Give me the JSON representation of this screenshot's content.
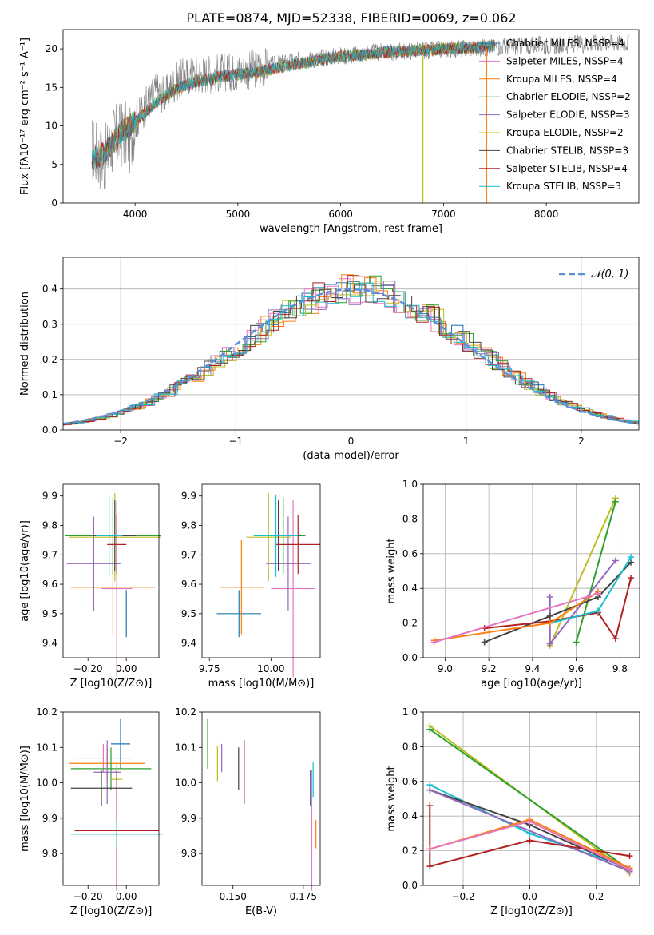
{
  "figure_title": "PLATE=0874, MJD=52338, FIBERID=0069, z=0.062",
  "legend_colors": [
    "#1f77b4",
    "#e377c2",
    "#ff7f0e",
    "#2ca02c",
    "#9467bd",
    "#bcbd22",
    "#444444",
    "#b22222",
    "#17becf"
  ],
  "chart_data": [
    {
      "id": "spectrum",
      "type": "line",
      "xlabel": "wavelength [Angstrom, rest frame]",
      "ylabel": "Flux [fλ10⁻¹⁷ erg cm⁻² s⁻¹ A⁻¹]",
      "xlim": [
        3300,
        8900
      ],
      "ylim": [
        0,
        22.5
      ],
      "xticks": [
        4000,
        5000,
        6000,
        7000,
        8000
      ],
      "yticks": [
        0,
        5,
        10,
        15,
        20
      ],
      "grid": false,
      "legend": "top-right",
      "legend_labels": [
        "Chabrier MILES, NSSP=4",
        "Salpeter MILES, NSSP=4",
        "Kroupa MILES, NSSP=4",
        "Chabrier ELODIE, NSSP=2",
        "Salpeter ELODIE, NSSP=3",
        "Kroupa ELODIE, NSSP=2",
        "Chabrier STELIB, NSSP=3",
        "Salpeter STELIB, NSSP=4",
        "Kroupa STELIB, NSSP=3"
      ],
      "series": [
        {
          "name": "data",
          "color": "#808080",
          "x": [
            3580,
            3700,
            3800,
            3900,
            3950,
            4000,
            4100,
            4200,
            4300,
            4400,
            4500,
            4700,
            4900,
            5100,
            5300,
            5500,
            5700,
            5900,
            6100,
            6300,
            6500,
            6700,
            6900,
            7100,
            7300,
            7500,
            7700,
            7900,
            8100,
            8300,
            8500,
            8800
          ],
          "y": [
            7.0,
            5.5,
            8.5,
            9.0,
            8.0,
            10.5,
            12.5,
            14.5,
            14.0,
            15.8,
            16.5,
            16.8,
            17.0,
            17.2,
            17.8,
            18.3,
            18.6,
            19.0,
            19.2,
            19.5,
            19.6,
            19.8,
            19.8,
            20.0,
            20.1,
            20.3,
            20.3,
            20.5,
            20.4,
            20.6,
            20.8,
            20.8
          ]
        },
        {
          "name": "model",
          "color": "#17becf",
          "x": [
            3580,
            3700,
            3800,
            3900,
            4000,
            4200,
            4400,
            4600,
            4800,
            5000,
            5200,
            5400,
            5600,
            5800,
            6000,
            6200,
            6400,
            6600,
            6800,
            7000,
            7200,
            7400,
            7500
          ],
          "y": [
            5.5,
            6.5,
            8.0,
            9.5,
            10.5,
            13.0,
            14.8,
            15.8,
            16.3,
            16.7,
            17.0,
            17.6,
            18.1,
            18.6,
            19.0,
            19.2,
            19.5,
            19.7,
            19.8,
            20.0,
            20.1,
            20.3,
            20.4
          ]
        }
      ]
    },
    {
      "id": "residuals",
      "type": "line",
      "xlabel": "(data-model)/error",
      "ylabel": "Normed distribution",
      "xlim": [
        -2.5,
        2.5
      ],
      "ylim": [
        0,
        0.49
      ],
      "xticks": [
        -2,
        -1,
        0,
        1,
        2
      ],
      "yticks": [
        0.0,
        0.1,
        0.2,
        0.3,
        0.4
      ],
      "grid": true,
      "legend": "top-right",
      "legend_label": "𝒩(0, 1)"
    },
    {
      "id": "age-vs-Z",
      "type": "scatter",
      "xlabel": "Z [log10(Z/Z⊙)]",
      "ylabel": "age [log10(age/yr)]",
      "xlim": [
        -0.33,
        0.17
      ],
      "ylim": [
        9.35,
        9.94
      ],
      "xticks": [
        -0.2,
        0.0
      ],
      "yticks": [
        9.4,
        9.5,
        9.6,
        9.7,
        9.8,
        9.9
      ],
      "points": [
        {
          "x": 0.0,
          "y": 9.5,
          "xerr": 0.0,
          "yerr": 0.08
        },
        {
          "x": -0.05,
          "y": 9.585,
          "xerr": 0.08,
          "yerr": 0.3
        },
        {
          "x": -0.07,
          "y": 9.59,
          "xerr": 0.22,
          "yerr": 0.16
        },
        {
          "x": -0.07,
          "y": 9.765,
          "xerr": 0.25,
          "yerr": 0.13
        },
        {
          "x": -0.17,
          "y": 9.67,
          "xerr": 0.14,
          "yerr": 0.16
        },
        {
          "x": -0.06,
          "y": 9.76,
          "xerr": 0.24,
          "yerr": 0.15
        },
        {
          "x": -0.06,
          "y": 9.765,
          "xerr": 0.11,
          "yerr": 0.12
        },
        {
          "x": -0.05,
          "y": 9.735,
          "xerr": 0.05,
          "yerr": 0.1
        },
        {
          "x": -0.09,
          "y": 9.765,
          "xerr": 0.07,
          "yerr": 0.14
        }
      ]
    },
    {
      "id": "age-vs-mass",
      "type": "scatter",
      "xlabel": "mass [log10(M/M⊙)]",
      "ylabel": "",
      "xlim": [
        9.72,
        10.2
      ],
      "ylim": [
        9.35,
        9.94
      ],
      "xticks": [
        9.75,
        10.0
      ],
      "yticks": [
        9.4,
        9.5,
        9.6,
        9.7,
        9.8,
        9.9
      ]
    },
    {
      "id": "weight-vs-age",
      "type": "line",
      "xlabel": "age [log10(age/yr)]",
      "ylabel": "mass weight",
      "xlim": [
        8.9,
        9.89
      ],
      "ylim": [
        0.0,
        1.0
      ],
      "xticks": [
        9.0,
        9.2,
        9.4,
        9.6,
        9.8
      ],
      "yticks": [
        0.0,
        0.2,
        0.4,
        0.6,
        0.8,
        1.0
      ],
      "grid": true,
      "series": [
        {
          "color": "#bcbd22",
          "x": [
            9.48,
            9.78
          ],
          "y": [
            0.07,
            0.92
          ]
        },
        {
          "color": "#2ca02c",
          "x": [
            9.6,
            9.78
          ],
          "y": [
            0.09,
            0.9
          ]
        },
        {
          "color": "#9467bd",
          "x": [
            9.48,
            9.48,
            9.78
          ],
          "y": [
            0.35,
            0.08,
            0.56
          ]
        },
        {
          "color": "#444444",
          "x": [
            9.18,
            9.48,
            9.7,
            9.85
          ],
          "y": [
            0.09,
            0.24,
            0.35,
            0.55
          ]
        },
        {
          "color": "#b22222",
          "x": [
            9.18,
            9.48,
            9.7,
            9.78,
            9.85
          ],
          "y": [
            0.17,
            0.21,
            0.26,
            0.11,
            0.46
          ]
        },
        {
          "color": "#17becf",
          "x": [
            9.48,
            9.7,
            9.85
          ],
          "y": [
            0.2,
            0.27,
            0.58
          ]
        },
        {
          "color": "#ff7f0e",
          "x": [
            8.95,
            9.48,
            9.7
          ],
          "y": [
            0.1,
            0.2,
            0.38
          ]
        },
        {
          "color": "#e377c2",
          "x": [
            8.95,
            9.7
          ],
          "y": [
            0.09,
            0.37
          ]
        }
      ]
    },
    {
      "id": "mass-vs-Z",
      "type": "scatter",
      "xlabel": "Z [log10(Z/Z⊙)]",
      "ylabel": "mass [log10(M/M⊙)]",
      "xlim": [
        -0.33,
        0.17
      ],
      "ylim": [
        9.71,
        10.2
      ],
      "xticks": [
        -0.2,
        0.0
      ],
      "yticks": [
        9.8,
        9.9,
        10.0,
        10.1,
        10.2
      ],
      "points": [
        {
          "x": -0.03,
          "y": 10.11,
          "xerr": 0.05,
          "yerr": 0.07
        },
        {
          "x": -0.12,
          "y": 10.07,
          "xerr": 0.15,
          "yerr": 0.04
        },
        {
          "x": -0.1,
          "y": 10.055,
          "xerr": 0.2,
          "yerr": 0.05
        },
        {
          "x": -0.08,
          "y": 10.04,
          "xerr": 0.21,
          "yerr": 0.06
        },
        {
          "x": -0.1,
          "y": 10.03,
          "xerr": 0.07,
          "yerr": 0.09
        },
        {
          "x": -0.05,
          "y": 10.01,
          "xerr": 0.03,
          "yerr": 0.05
        },
        {
          "x": -0.13,
          "y": 9.985,
          "xerr": 0.16,
          "yerr": 0.05
        },
        {
          "x": -0.05,
          "y": 9.865,
          "xerr": 0.22,
          "yerr": 0.17
        },
        {
          "x": -0.05,
          "y": 9.855,
          "xerr": 0.24,
          "yerr": 0.04
        }
      ]
    },
    {
      "id": "mass-vs-ebv",
      "type": "scatter",
      "xlabel": "E(B-V)",
      "ylabel": "",
      "xlim": [
        0.139,
        0.181
      ],
      "ylim": [
        9.71,
        10.2
      ],
      "xticks": [
        0.15,
        0.175
      ],
      "yticks": [
        9.8,
        9.9,
        10.0,
        10.1,
        10.2
      ]
    },
    {
      "id": "weight-vs-Z",
      "type": "line",
      "xlabel": "Z [log10(Z/Z⊙)]",
      "ylabel": "mass weight",
      "xlim": [
        -0.32,
        0.33
      ],
      "ylim": [
        0.0,
        1.0
      ],
      "xticks": [
        -0.2,
        0.0,
        0.2
      ],
      "yticks": [
        0.0,
        0.2,
        0.4,
        0.6,
        0.8,
        1.0
      ],
      "grid": true,
      "series": [
        {
          "color": "#bcbd22",
          "x": [
            -0.3,
            0.3
          ],
          "y": [
            0.92,
            0.07
          ]
        },
        {
          "color": "#2ca02c",
          "x": [
            -0.3,
            0.3
          ],
          "y": [
            0.9,
            0.09
          ]
        },
        {
          "color": "#17becf",
          "x": [
            -0.3,
            0.0,
            0.3
          ],
          "y": [
            0.58,
            0.3,
            0.1
          ]
        },
        {
          "color": "#444444",
          "x": [
            -0.3,
            0.0,
            0.3
          ],
          "y": [
            0.55,
            0.35,
            0.09
          ]
        },
        {
          "color": "#9467bd",
          "x": [
            -0.3,
            0.3
          ],
          "y": [
            0.55,
            0.08
          ]
        },
        {
          "color": "#b22222",
          "x": [
            -0.3,
            -0.3,
            0.0,
            0.3
          ],
          "y": [
            0.46,
            0.11,
            0.26,
            0.17
          ]
        },
        {
          "color": "#ff7f0e",
          "x": [
            -0.3,
            0.0,
            0.3
          ],
          "y": [
            0.21,
            0.38,
            0.1
          ]
        },
        {
          "color": "#e377c2",
          "x": [
            -0.3,
            0.0,
            0.3
          ],
          "y": [
            0.21,
            0.37,
            0.09
          ]
        }
      ]
    }
  ]
}
